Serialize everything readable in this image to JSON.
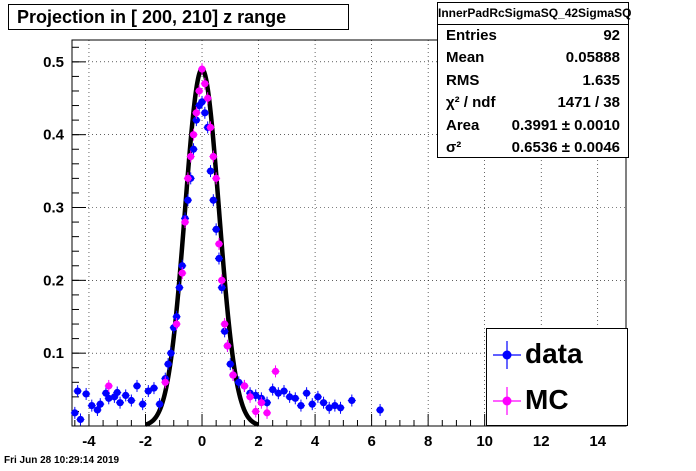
{
  "title": "Projection in [ 200, 210] z range",
  "footer": "Fri Jun 28 10:29:14 2019",
  "stats": {
    "name": "InnerPadRcSigmaSQ_42SigmaSQ",
    "rows": [
      {
        "label": "Entries",
        "value": "92"
      },
      {
        "label": "Mean",
        "value": "0.05888"
      },
      {
        "label": "RMS",
        "value": "1.635"
      },
      {
        "label": "χ² / ndf",
        "value": "1471 / 38"
      },
      {
        "label": "Area",
        "value": "0.3991 ± 0.0010"
      },
      {
        "label": "σ²",
        "value": "0.6536 ± 0.0046"
      }
    ]
  },
  "legend": [
    {
      "label": "data",
      "color": "#0000ff"
    },
    {
      "label": "MC",
      "color": "#ff00ff"
    }
  ],
  "colors": {
    "data": "#0000ff",
    "mc": "#ff00ff",
    "fit": "#000000"
  },
  "chart_data": {
    "type": "scatter",
    "xlim": [
      -4.6,
      15.0
    ],
    "ylim": [
      0.0,
      0.53
    ],
    "xticks": [
      "-4",
      "-2",
      "0",
      "2",
      "4",
      "6",
      "8",
      "10",
      "12",
      "14"
    ],
    "yticks": [
      "0.1",
      "0.2",
      "0.3",
      "0.4",
      "0.5"
    ],
    "grid": true,
    "series": [
      {
        "name": "data",
        "points": [
          [
            -4.5,
            0.018
          ],
          [
            -4.4,
            0.048
          ],
          [
            -4.3,
            0.009
          ],
          [
            -4.1,
            0.044
          ],
          [
            -3.9,
            0.028
          ],
          [
            -3.7,
            0.022
          ],
          [
            -3.6,
            0.03
          ],
          [
            -3.4,
            0.045
          ],
          [
            -3.3,
            0.038
          ],
          [
            -3.1,
            0.04
          ],
          [
            -3.0,
            0.046
          ],
          [
            -2.9,
            0.032
          ],
          [
            -2.7,
            0.042
          ],
          [
            -2.5,
            0.035
          ],
          [
            -2.3,
            0.055
          ],
          [
            -2.1,
            0.03
          ],
          [
            -1.9,
            0.048
          ],
          [
            -1.7,
            0.052
          ],
          [
            -1.5,
            0.03
          ],
          [
            -1.3,
            0.065
          ],
          [
            -1.2,
            0.085
          ],
          [
            -1.1,
            0.1
          ],
          [
            -1.0,
            0.135
          ],
          [
            -0.9,
            0.15
          ],
          [
            -0.8,
            0.19
          ],
          [
            -0.7,
            0.22
          ],
          [
            -0.6,
            0.285
          ],
          [
            -0.5,
            0.31
          ],
          [
            -0.4,
            0.34
          ],
          [
            -0.3,
            0.38
          ],
          [
            -0.2,
            0.42
          ],
          [
            -0.1,
            0.44
          ],
          [
            0.0,
            0.445
          ],
          [
            0.1,
            0.43
          ],
          [
            0.2,
            0.41
          ],
          [
            0.3,
            0.35
          ],
          [
            0.4,
            0.31
          ],
          [
            0.5,
            0.27
          ],
          [
            0.6,
            0.23
          ],
          [
            0.7,
            0.19
          ],
          [
            0.8,
            0.13
          ],
          [
            0.9,
            0.11
          ],
          [
            1.0,
            0.085
          ],
          [
            1.1,
            0.07
          ],
          [
            1.3,
            0.06
          ],
          [
            1.5,
            0.055
          ],
          [
            1.7,
            0.045
          ],
          [
            1.9,
            0.042
          ],
          [
            2.1,
            0.038
          ],
          [
            2.3,
            0.032
          ],
          [
            2.5,
            0.05
          ],
          [
            2.7,
            0.045
          ],
          [
            2.9,
            0.048
          ],
          [
            3.1,
            0.04
          ],
          [
            3.3,
            0.038
          ],
          [
            3.5,
            0.028
          ],
          [
            3.7,
            0.045
          ],
          [
            3.9,
            0.03
          ],
          [
            4.1,
            0.04
          ],
          [
            4.3,
            0.032
          ],
          [
            4.5,
            0.025
          ],
          [
            4.7,
            0.028
          ],
          [
            4.9,
            0.025
          ],
          [
            5.3,
            0.035
          ],
          [
            6.3,
            0.022
          ]
        ]
      },
      {
        "name": "MC",
        "points": [
          [
            -3.3,
            0.055
          ],
          [
            -1.3,
            0.06
          ],
          [
            -0.9,
            0.14
          ],
          [
            -0.7,
            0.21
          ],
          [
            -0.6,
            0.28
          ],
          [
            -0.5,
            0.34
          ],
          [
            -0.4,
            0.37
          ],
          [
            -0.3,
            0.4
          ],
          [
            -0.2,
            0.43
          ],
          [
            -0.1,
            0.46
          ],
          [
            0.0,
            0.49
          ],
          [
            0.1,
            0.47
          ],
          [
            0.2,
            0.45
          ],
          [
            0.3,
            0.41
          ],
          [
            0.4,
            0.37
          ],
          [
            0.5,
            0.34
          ],
          [
            0.6,
            0.25
          ],
          [
            0.7,
            0.2
          ],
          [
            0.8,
            0.14
          ],
          [
            0.9,
            0.11
          ],
          [
            1.1,
            0.07
          ],
          [
            1.5,
            0.055
          ],
          [
            1.7,
            0.04
          ],
          [
            1.9,
            0.02
          ],
          [
            2.1,
            0.032
          ],
          [
            2.3,
            0.018
          ],
          [
            2.6,
            0.075
          ]
        ]
      }
    ],
    "fit": {
      "type": "gaussian",
      "mean": 0.0,
      "sigma": 0.6,
      "amplitude": 0.49,
      "range": [
        -2.0,
        2.0
      ]
    }
  }
}
